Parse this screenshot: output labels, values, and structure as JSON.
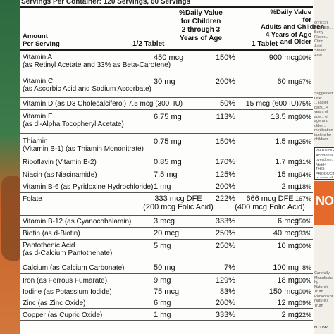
{
  "top_line": "Servings Per Container: 120 Servings, 60 Servings",
  "header": {
    "amount_label": "Amount\nPer Serving",
    "half_tablet": "1/2 Tablet",
    "dv_children": "%Daily Value\nfor Children\n2 through 3\nYears of Age",
    "one_tablet": "1 Tablet",
    "dv_adults": "%Daily Value\nfor\nAdults and Children\n4 Years of Age\nand Older"
  },
  "rows": [
    {
      "name": "Vitamin A\n(as Retinyl Acetate and 33% as Beta-Carotene)",
      "half": "450 mcg",
      "dvc": "150%",
      "full": "900 mcg",
      "dva": "100%"
    },
    {
      "name": "Vitamin C\n(as Ascorbic Acid and Sodium Ascorbate)",
      "half": "30 mg",
      "dvc": "200%",
      "full": "60 mg",
      "dva": "67%"
    },
    {
      "name": "Vitamin D (as D3 Cholecalciferol) 7.5 mcg (300  IU)",
      "half": "",
      "dvc": "50%",
      "full": "15 mcg (600 IU)",
      "dva": "75%"
    },
    {
      "name": "Vitamin E\n(as dl-Alpha Tocopheryl Acetate)",
      "half": "6.75 mg",
      "dvc": "113%",
      "full": "13.5 mg",
      "dva": "90%"
    },
    {
      "name": "Thiamin\n(Vitamin B-1) (as Thiamin Mononitrate)",
      "half": "0.75 mg",
      "dvc": "150%",
      "full": "1.5 mg",
      "dva": "125%"
    },
    {
      "name": "Riboflavin (Vitamin B-2)",
      "half": "0.85 mg",
      "dvc": "170%",
      "full": "1.7 mg",
      "dva": "131%"
    },
    {
      "name": "Niacin (as Niacinamide)",
      "half": "7.5 mg",
      "dvc": "125%",
      "full": "15 mg",
      "dva": "94%"
    },
    {
      "name": "Vitamin B-6 (as Pyridoxine Hydrochloride)",
      "half": "1 mg",
      "dvc": "200%",
      "full": "2 mg",
      "dva": "118%"
    },
    {
      "name": "Folate",
      "half": "333 mcg DFE\n(200 mcg Folic Acid)",
      "dvc": "222%",
      "full": "666 mcg DFE\n(400 mcg Folic Acid)",
      "dva": "167%"
    },
    {
      "name": "Vitamin B-12 (as Cyanocobalamin)",
      "half": "3 mcg",
      "dvc": "333%",
      "full": "6 mcg",
      "dva": "250%"
    },
    {
      "name": "Biotin (as d-Biotin)",
      "half": "20 mcg",
      "dvc": "250%",
      "full": "40 mcg",
      "dva": "133%"
    },
    {
      "name": "Pantothenic Acid\n(as d-Calcium Pantothenate)",
      "half": "5 mg",
      "dvc": "250%",
      "full": "10 mg",
      "dva": "200%"
    },
    {
      "name": "Calcium (as Calcium Carbonate)",
      "half": "50 mg",
      "dvc": "7%",
      "full": "100 mg",
      "dva": "8%"
    },
    {
      "name": "Iron (as Ferrous Fumarate)",
      "half": "9 mg",
      "dvc": "129%",
      "full": "18 mg",
      "dva": "100%"
    },
    {
      "name": "Iodine (as Potassium Iodide)",
      "half": "75 mcg",
      "dvc": "83%",
      "full": "150 mcg",
      "dva": "100%"
    },
    {
      "name": "Zinc (as Zinc Oxide)",
      "half": "6 mg",
      "dvc": "200%",
      "full": "12 mg",
      "dva": "109%"
    },
    {
      "name": "Copper (as Cupric Oxide)",
      "half": "1 mg",
      "dvc": "333%",
      "full": "2 mg",
      "dva": "222%"
    }
  ],
  "side": {
    "top_text": "OTHER INGRED... Berry Flavor... Citric Acid... Stearic Acid...",
    "mid_text": "Suggested Use: ...Tablet daily... 4 years of age... of age and older... medication... tablets for children...",
    "warning_text": "WARNING: Accidental overdose... KEEP THIS PRODUCT... In case of accidental...",
    "orange_label": "NO",
    "bottom_text": "Carefully Manufactured by Nature's Truth... Ronkonkoma... Nature's Truth",
    "code": "NT1197"
  },
  "colors": {
    "panel": "#fdfdfc",
    "rule": "#1a1a1a",
    "accent": "#e4692a",
    "bg": "#e9e6de"
  }
}
